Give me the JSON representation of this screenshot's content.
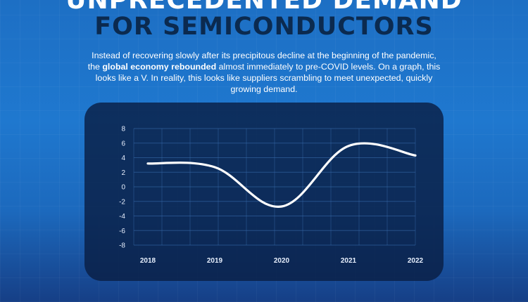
{
  "header": {
    "title_line1": "UNPRECEDENTED DEMAND",
    "title_line2": "FOR SEMICONDUCTORS"
  },
  "intro": {
    "part1": "Instead of recovering slowly after its precipitous decline at the beginning of the pandemic, the ",
    "highlight": "global economy rebounded",
    "part2": " almost immediately to pre-COVID levels. On a graph, this looks like a V. In reality, this looks like suppliers scrambling to meet unexpected, quickly growing demand."
  },
  "colors": {
    "background": "#1d6fc4",
    "title_line1": "#ffffff",
    "title_line2": "#0b2a4f",
    "panel": "#0a1e44",
    "line": "#ffffff",
    "grid": "#3a6fb0"
  },
  "chart_data": {
    "type": "line",
    "title": "",
    "xlabel": "",
    "ylabel": "",
    "x": [
      "2018",
      "2019",
      "2020",
      "2021",
      "2022"
    ],
    "values": [
      3.2,
      2.7,
      -2.7,
      5.6,
      4.3
    ],
    "ylim": [
      -8,
      8
    ],
    "yticks": [
      8,
      6,
      4,
      2,
      0,
      -2,
      -4,
      -6,
      -8
    ],
    "grid": true,
    "legend": "none",
    "line_shape": "smooth"
  }
}
